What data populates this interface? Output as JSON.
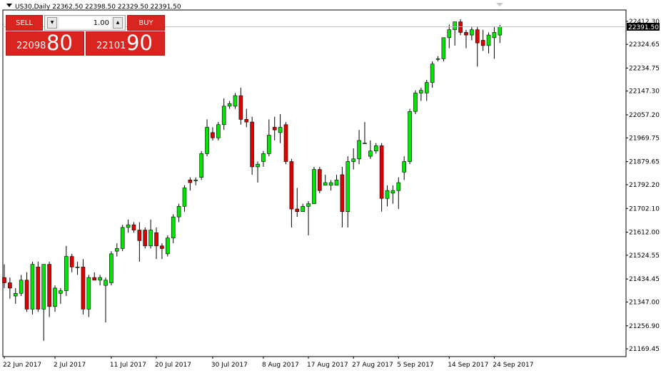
{
  "chart_title": "US30,Daily  22362.50  22398.50  22329.50  22391.50",
  "trade_panel": {
    "sell_label": "SELL",
    "buy_label": "BUY",
    "lot_value": "1.00",
    "sell_price_small": "22098",
    "sell_price_big": "80",
    "buy_price_small": "22101",
    "buy_price_big": "90"
  },
  "current_price_label": "22391.50",
  "chart_data": {
    "type": "candlestick",
    "title": "US30,Daily",
    "ohlc_header": {
      "open": 22362.5,
      "high": 22398.5,
      "low": 22329.5,
      "close": 22391.5
    },
    "ylim": [
      21140,
      22455
    ],
    "y_ticks": [
      "22412.30",
      "22324.65",
      "22234.75",
      "22147.30",
      "22057.20",
      "21969.75",
      "21879.65",
      "21792.20",
      "21702.10",
      "21612.00",
      "21524.55",
      "21434.45",
      "21347.00",
      "21256.90",
      "21169.45"
    ],
    "x_ticks": [
      "22 Jun 2017",
      "2 Jul 2017",
      "11 Jul 2017",
      "20 Jul 2017",
      "30 Jul 2017",
      "8 Aug 2017",
      "17 Aug 2017",
      "27 Aug 2017",
      "5 Sep 2017",
      "14 Sep 2017",
      "24 Sep 2017"
    ],
    "current_price": 22391.5,
    "colors": {
      "up": "#00e600",
      "down": "#e00000",
      "wick": "#000000",
      "grid_line": "#c0c0c0"
    },
    "candles": [
      {
        "o": 21440,
        "h": 21490,
        "l": 21400,
        "c": 21420
      },
      {
        "o": 21420,
        "h": 21440,
        "l": 21360,
        "c": 21400
      },
      {
        "o": 21370,
        "h": 21400,
        "l": 21340,
        "c": 21380
      },
      {
        "o": 21380,
        "h": 21450,
        "l": 21370,
        "c": 21430
      },
      {
        "o": 21430,
        "h": 21460,
        "l": 21310,
        "c": 21320
      },
      {
        "o": 21320,
        "h": 21500,
        "l": 21300,
        "c": 21490
      },
      {
        "o": 21480,
        "h": 21500,
        "l": 21310,
        "c": 21320
      },
      {
        "o": 21320,
        "h": 21490,
        "l": 21200,
        "c": 21490
      },
      {
        "o": 21490,
        "h": 21500,
        "l": 21290,
        "c": 21330
      },
      {
        "o": 21330,
        "h": 21410,
        "l": 21310,
        "c": 21400
      },
      {
        "o": 21380,
        "h": 21400,
        "l": 21340,
        "c": 21390
      },
      {
        "o": 21390,
        "h": 21560,
        "l": 21370,
        "c": 21520
      },
      {
        "o": 21520,
        "h": 21530,
        "l": 21460,
        "c": 21480
      },
      {
        "o": 21480,
        "h": 21500,
        "l": 21450,
        "c": 21480
      },
      {
        "o": 21480,
        "h": 21510,
        "l": 21300,
        "c": 21320
      },
      {
        "o": 21320,
        "h": 21450,
        "l": 21290,
        "c": 21440
      },
      {
        "o": 21440,
        "h": 21460,
        "l": 21430,
        "c": 21430
      },
      {
        "o": 21430,
        "h": 21450,
        "l": 21410,
        "c": 21440
      },
      {
        "o": 21410,
        "h": 21440,
        "l": 21270,
        "c": 21430
      },
      {
        "o": 21420,
        "h": 21540,
        "l": 21410,
        "c": 21530
      },
      {
        "o": 21540,
        "h": 21570,
        "l": 21520,
        "c": 21550
      },
      {
        "o": 21550,
        "h": 21640,
        "l": 21540,
        "c": 21630
      },
      {
        "o": 21630,
        "h": 21660,
        "l": 21610,
        "c": 21640
      },
      {
        "o": 21640,
        "h": 21650,
        "l": 21610,
        "c": 21620
      },
      {
        "o": 21620,
        "h": 21650,
        "l": 21500,
        "c": 21580
      },
      {
        "o": 21620,
        "h": 21630,
        "l": 21550,
        "c": 21560
      },
      {
        "o": 21560,
        "h": 21660,
        "l": 21550,
        "c": 21620
      },
      {
        "o": 21610,
        "h": 21630,
        "l": 21510,
        "c": 21560
      },
      {
        "o": 21560,
        "h": 21570,
        "l": 21510,
        "c": 21550
      },
      {
        "o": 21530,
        "h": 21600,
        "l": 21520,
        "c": 21590
      },
      {
        "o": 21590,
        "h": 21680,
        "l": 21570,
        "c": 21670
      },
      {
        "o": 21670,
        "h": 21720,
        "l": 21650,
        "c": 21710
      },
      {
        "o": 21710,
        "h": 21790,
        "l": 21690,
        "c": 21780
      },
      {
        "o": 21810,
        "h": 21820,
        "l": 21770,
        "c": 21800
      },
      {
        "o": 21810,
        "h": 21820,
        "l": 21790,
        "c": 21810
      },
      {
        "o": 21820,
        "h": 21920,
        "l": 21810,
        "c": 21910
      },
      {
        "o": 21910,
        "h": 22040,
        "l": 21900,
        "c": 22010
      },
      {
        "o": 21990,
        "h": 22010,
        "l": 21960,
        "c": 21970
      },
      {
        "o": 21970,
        "h": 22030,
        "l": 21960,
        "c": 22020
      },
      {
        "o": 22020,
        "h": 22120,
        "l": 22000,
        "c": 22090
      },
      {
        "o": 22090,
        "h": 22110,
        "l": 22080,
        "c": 22100
      },
      {
        "o": 22090,
        "h": 22140,
        "l": 22080,
        "c": 22130
      },
      {
        "o": 22130,
        "h": 22160,
        "l": 22020,
        "c": 22040
      },
      {
        "o": 22040,
        "h": 22080,
        "l": 22010,
        "c": 22030
      },
      {
        "o": 22030,
        "h": 22050,
        "l": 21830,
        "c": 21860
      },
      {
        "o": 21860,
        "h": 21880,
        "l": 21800,
        "c": 21870
      },
      {
        "o": 21880,
        "h": 21920,
        "l": 21860,
        "c": 21910
      },
      {
        "o": 21910,
        "h": 22040,
        "l": 21900,
        "c": 21980
      },
      {
        "o": 22010,
        "h": 22050,
        "l": 21960,
        "c": 22000
      },
      {
        "o": 21990,
        "h": 22060,
        "l": 21950,
        "c": 22010
      },
      {
        "o": 22020,
        "h": 22030,
        "l": 21870,
        "c": 21880
      },
      {
        "o": 21880,
        "h": 21890,
        "l": 21630,
        "c": 21700
      },
      {
        "o": 21700,
        "h": 21780,
        "l": 21670,
        "c": 21690
      },
      {
        "o": 21690,
        "h": 21720,
        "l": 21690,
        "c": 21710
      },
      {
        "o": 21710,
        "h": 21730,
        "l": 21600,
        "c": 21720
      },
      {
        "o": 21720,
        "h": 21860,
        "l": 21720,
        "c": 21850
      },
      {
        "o": 21850,
        "h": 21860,
        "l": 21760,
        "c": 21770
      },
      {
        "o": 21790,
        "h": 21830,
        "l": 21790,
        "c": 21800
      },
      {
        "o": 21790,
        "h": 21810,
        "l": 21770,
        "c": 21800
      },
      {
        "o": 21790,
        "h": 21830,
        "l": 21790,
        "c": 21810
      },
      {
        "o": 21830,
        "h": 21860,
        "l": 21630,
        "c": 21690
      },
      {
        "o": 21690,
        "h": 21900,
        "l": 21630,
        "c": 21880
      },
      {
        "o": 21880,
        "h": 21930,
        "l": 21850,
        "c": 21890
      },
      {
        "o": 21890,
        "h": 22000,
        "l": 21870,
        "c": 21960
      },
      {
        "o": 21950,
        "h": 22030,
        "l": 21950,
        "c": 21950
      },
      {
        "o": 21900,
        "h": 21960,
        "l": 21890,
        "c": 21920
      },
      {
        "o": 21920,
        "h": 21950,
        "l": 21910,
        "c": 21940
      },
      {
        "o": 21940,
        "h": 21950,
        "l": 21690,
        "c": 21740
      },
      {
        "o": 21740,
        "h": 21790,
        "l": 21710,
        "c": 21770
      },
      {
        "o": 21760,
        "h": 21790,
        "l": 21720,
        "c": 21770
      },
      {
        "o": 21770,
        "h": 21820,
        "l": 21700,
        "c": 21800
      },
      {
        "o": 21840,
        "h": 21900,
        "l": 21810,
        "c": 21880
      },
      {
        "o": 21880,
        "h": 22080,
        "l": 21870,
        "c": 22070
      },
      {
        "o": 22070,
        "h": 22150,
        "l": 22060,
        "c": 22140
      },
      {
        "o": 22140,
        "h": 22160,
        "l": 22110,
        "c": 22150
      },
      {
        "o": 22140,
        "h": 22190,
        "l": 22110,
        "c": 22180
      },
      {
        "o": 22180,
        "h": 22260,
        "l": 22160,
        "c": 22250
      },
      {
        "o": 22270,
        "h": 22280,
        "l": 22260,
        "c": 22270
      },
      {
        "o": 22270,
        "h": 22350,
        "l": 22260,
        "c": 22350
      },
      {
        "o": 22350,
        "h": 22400,
        "l": 22310,
        "c": 22380
      },
      {
        "o": 22380,
        "h": 22410,
        "l": 22320,
        "c": 22410
      },
      {
        "o": 22410,
        "h": 22420,
        "l": 22360,
        "c": 22370
      },
      {
        "o": 22370,
        "h": 22380,
        "l": 22310,
        "c": 22360
      },
      {
        "o": 22360,
        "h": 22390,
        "l": 22340,
        "c": 22380
      },
      {
        "o": 22380,
        "h": 22390,
        "l": 22240,
        "c": 22330
      },
      {
        "o": 22340,
        "h": 22380,
        "l": 22300,
        "c": 22320
      },
      {
        "o": 22320,
        "h": 22370,
        "l": 22290,
        "c": 22360
      },
      {
        "o": 22350,
        "h": 22390,
        "l": 22270,
        "c": 22370
      },
      {
        "o": 22360,
        "h": 22398.5,
        "l": 22329.5,
        "c": 22391.5
      }
    ]
  }
}
